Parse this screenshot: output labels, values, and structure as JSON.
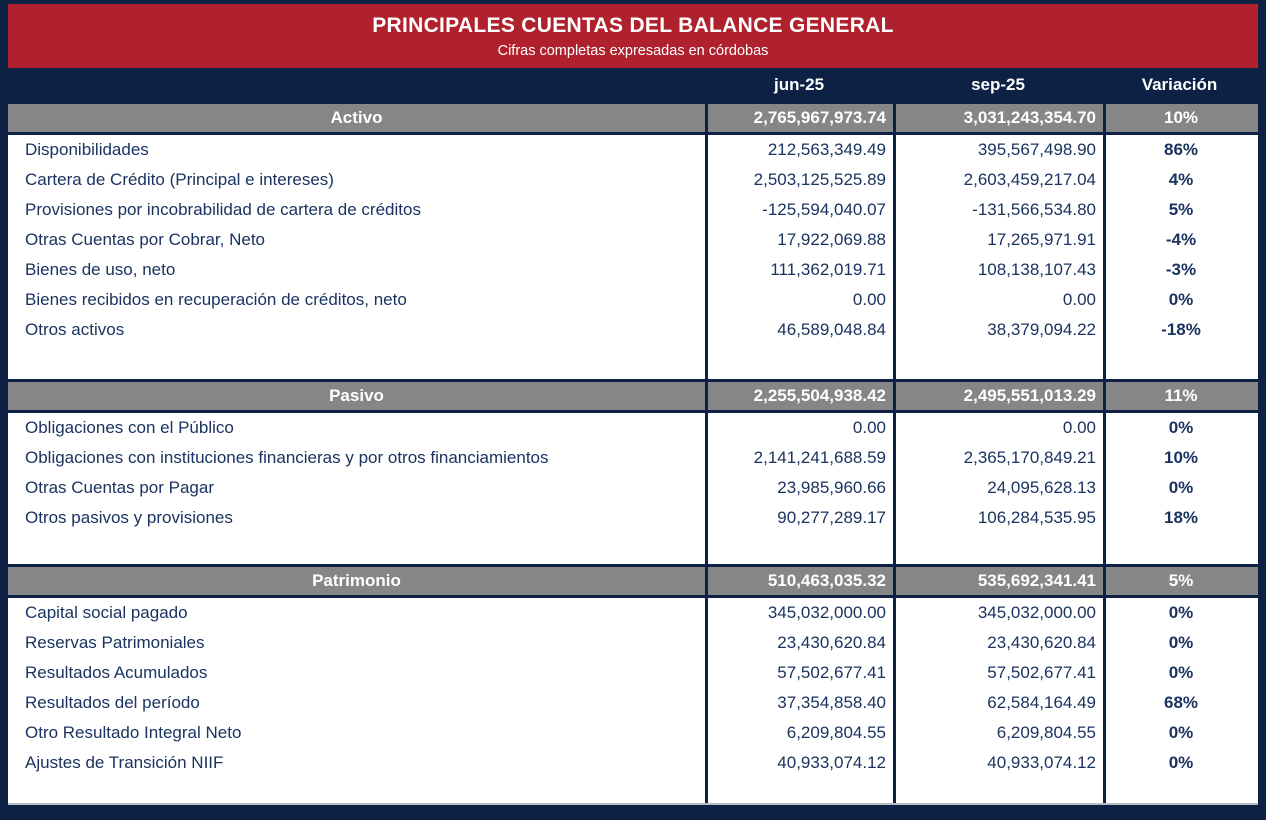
{
  "banner": {
    "title": "PRINCIPALES CUENTAS DEL BALANCE GENERAL",
    "subtitle": "Cifras completas expresadas en córdobas"
  },
  "columns": {
    "period1": "jun-25",
    "period2": "sep-25",
    "variation": "Variación"
  },
  "sections": [
    {
      "name": "Activo",
      "jun": "2,765,967,973.74",
      "sep": "3,031,243,354.70",
      "var": "10%",
      "rows": [
        {
          "label": "Disponibilidades",
          "jun": "212,563,349.49",
          "sep": "395,567,498.90",
          "var": "86%"
        },
        {
          "label": "Cartera de Crédito (Principal e intereses)",
          "jun": "2,503,125,525.89",
          "sep": "2,603,459,217.04",
          "var": "4%"
        },
        {
          "label": "Provisiones por incobrabilidad de cartera de créditos",
          "jun": "-125,594,040.07",
          "sep": "-131,566,534.80",
          "var": "5%"
        },
        {
          "label": "Otras Cuentas por Cobrar, Neto",
          "jun": "17,922,069.88",
          "sep": "17,265,971.91",
          "var": "-4%"
        },
        {
          "label": "Bienes de uso, neto",
          "jun": "111,362,019.71",
          "sep": "108,138,107.43",
          "var": "-3%"
        },
        {
          "label": "Bienes recibidos en recuperación de créditos, neto",
          "jun": "0.00",
          "sep": "0.00",
          "var": "0%"
        },
        {
          "label": "Otros activos",
          "jun": "46,589,048.84",
          "sep": "38,379,094.22",
          "var": "-18%"
        }
      ]
    },
    {
      "name": "Pasivo",
      "jun": "2,255,504,938.42",
      "sep": "2,495,551,013.29",
      "var": "11%",
      "rows": [
        {
          "label": "Obligaciones con el Público",
          "jun": "0.00",
          "sep": "0.00",
          "var": "0%"
        },
        {
          "label": "Obligaciones con instituciones financieras y por otros financiamientos",
          "jun": "2,141,241,688.59",
          "sep": "2,365,170,849.21",
          "var": "10%"
        },
        {
          "label": "Otras Cuentas por Pagar",
          "jun": "23,985,960.66",
          "sep": "24,095,628.13",
          "var": "0%"
        },
        {
          "label": "Otros pasivos y provisiones",
          "jun": "90,277,289.17",
          "sep": "106,284,535.95",
          "var": "18%"
        }
      ]
    },
    {
      "name": "Patrimonio",
      "jun": "510,463,035.32",
      "sep": "535,692,341.41",
      "var": "5%",
      "rows": [
        {
          "label": "Capital social pagado",
          "jun": "345,032,000.00",
          "sep": "345,032,000.00",
          "var": "0%"
        },
        {
          "label": "Reservas Patrimoniales",
          "jun": "23,430,620.84",
          "sep": "23,430,620.84",
          "var": "0%"
        },
        {
          "label": "Resultados Acumulados",
          "jun": "57,502,677.41",
          "sep": "57,502,677.41",
          "var": "0%"
        },
        {
          "label": "Resultados del período",
          "jun": "37,354,858.40",
          "sep": "62,584,164.49",
          "var": "68%"
        },
        {
          "label": "Otro Resultado Integral Neto",
          "jun": "6,209,804.55",
          "sep": "6,209,804.55",
          "var": "0%"
        },
        {
          "label": "Ajustes de Transición NIIF",
          "jun": "40,933,074.12",
          "sep": "40,933,074.12",
          "var": "0%"
        }
      ]
    }
  ],
  "colors": {
    "banner_red": "#AF212D",
    "navy": "#0D2145",
    "section_gray": "#868686",
    "data_text": "#1A3360",
    "white": "#FFFFFF"
  }
}
